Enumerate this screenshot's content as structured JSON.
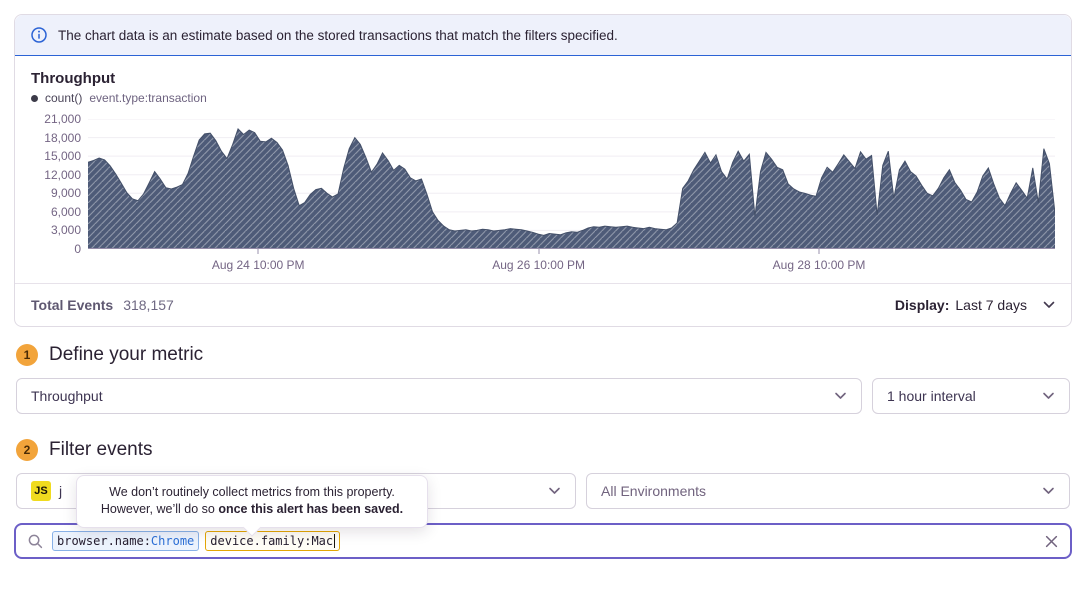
{
  "banner": {
    "text": "The chart data is an estimate based on the stored transactions that match the filters specified."
  },
  "chart": {
    "title": "Throughput",
    "legend": {
      "series_name": "count()",
      "series_query": "event.type:transaction"
    },
    "y_ticks": [
      "21,000",
      "18,000",
      "15,000",
      "12,000",
      "9,000",
      "6,000",
      "3,000",
      "0"
    ]
  },
  "chart_data": {
    "type": "area",
    "title": "Throughput",
    "ylabel": "count()",
    "query": "event.type:transaction",
    "ylim": [
      0,
      21000
    ],
    "y_tick_step": 3000,
    "grid": "horizontal",
    "x_range": "Last 7 days, 1 hour interval",
    "x_ticks": [
      {
        "label": "Aug 24 10:00 PM",
        "pos": 0.176
      },
      {
        "label": "Aug 26 10:00 PM",
        "pos": 0.466
      },
      {
        "label": "Aug 28 10:00 PM",
        "pos": 0.756
      }
    ],
    "total_events": 318157,
    "series": [
      {
        "name": "count() event.type:transaction",
        "values": [
          14000,
          14300,
          14700,
          14400,
          13400,
          12100,
          10600,
          9100,
          8100,
          7800,
          8900,
          10700,
          12500,
          11300,
          9900,
          9700,
          10000,
          10400,
          12200,
          15000,
          17600,
          18600,
          18700,
          17500,
          15800,
          14600,
          16800,
          19400,
          18500,
          19200,
          18800,
          17400,
          17300,
          17900,
          17200,
          16000,
          13500,
          9800,
          7000,
          7500,
          8800,
          9600,
          9800,
          9000,
          8400,
          8900,
          13000,
          16200,
          18000,
          16900,
          14800,
          12400,
          13700,
          15500,
          14300,
          12700,
          13500,
          12900,
          11500,
          11000,
          11300,
          8800,
          6000,
          4600,
          3700,
          3100,
          2900,
          3000,
          3100,
          2900,
          3000,
          3200,
          3100,
          2900,
          3000,
          3100,
          3300,
          3200,
          3100,
          2900,
          2700,
          2400,
          2200,
          2500,
          2400,
          2300,
          2600,
          2800,
          2700,
          3000,
          3400,
          3600,
          3500,
          3700,
          3600,
          3500,
          3600,
          3700,
          3500,
          3400,
          3300,
          3500,
          3300,
          3200,
          3100,
          3400,
          4200,
          9800,
          11000,
          12800,
          14200,
          15600,
          13900,
          15200,
          12500,
          11300,
          14000,
          15800,
          14200,
          15300,
          5300,
          12500,
          15600,
          14500,
          13200,
          12800,
          10500,
          9700,
          9200,
          9000,
          8700,
          8500,
          11500,
          13200,
          12400,
          13800,
          15200,
          14100,
          13000,
          15700,
          14500,
          15100,
          5500,
          13500,
          15800,
          8200,
          12800,
          14200,
          12500,
          11800,
          10300,
          9000,
          8600,
          9800,
          11500,
          12800,
          10700,
          9500,
          8000,
          7600,
          9200,
          11800,
          13100,
          10500,
          8200,
          7000,
          9000,
          10700,
          9500,
          8200,
          13100,
          7500,
          16200,
          13800,
          5800
        ]
      }
    ]
  },
  "panel_footer": {
    "total_label": "Total Events",
    "total_value": "318,157",
    "display_label": "Display:",
    "display_value": "Last 7 days"
  },
  "sections": {
    "metric": {
      "number": "1",
      "title": "Define your metric"
    },
    "filter": {
      "number": "2",
      "title": "Filter events"
    }
  },
  "metric_row": {
    "metric_select": "Throughput",
    "interval_select": "1 hour interval"
  },
  "filter_row": {
    "project_badge": "JS",
    "project_label": "j",
    "environment_select": "All Environments"
  },
  "tooltip": {
    "line1": "We don’t routinely collect metrics from this property.",
    "line2_regular": "However, we’ll do so ",
    "line2_bold": "once this alert has been saved."
  },
  "search": {
    "tokens": [
      {
        "key": "browser.name:",
        "value": "Chrome"
      },
      {
        "key": "device.family:",
        "value": "Mac"
      }
    ]
  },
  "colors": {
    "accent_purple": "#6c5fc7",
    "banner_border_blue": "#2b63d5",
    "area_fill": "#4e5b78",
    "step_badge_orange": "#f2a43b",
    "token_blue_border": "#88b1e7",
    "token_yellow_border": "#e3a605",
    "js_badge_yellow": "#f0db1f"
  }
}
